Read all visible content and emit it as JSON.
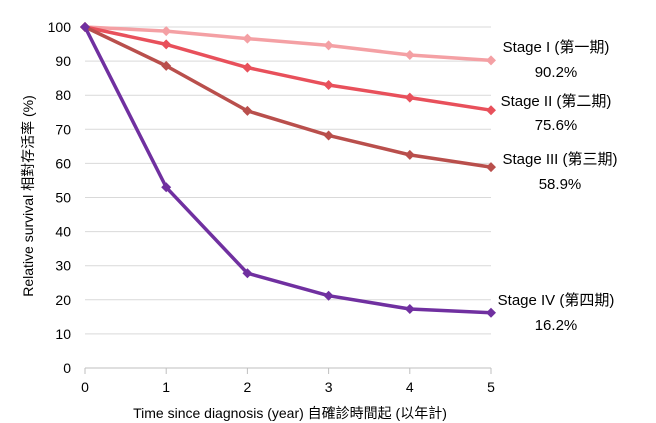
{
  "chart_data": {
    "type": "line",
    "title": "",
    "xlabel": "Time since diagnosis (year) 自確診時間起 (以年計)",
    "ylabel": "Relative survival  相對存活率 (%)",
    "x": [
      0,
      1,
      2,
      3,
      4,
      5
    ],
    "xlim": [
      0,
      5
    ],
    "ylim": [
      0,
      100
    ],
    "yticks": [
      0,
      10,
      20,
      30,
      40,
      50,
      60,
      70,
      80,
      90,
      100
    ],
    "grid": true,
    "legend": "direct labels at line ends",
    "series": [
      {
        "name": "Stage I (第一期)",
        "end_label": "90.2%",
        "color": "#f4a0a4",
        "values": [
          100,
          98.8,
          96.6,
          94.6,
          91.8,
          90.2
        ]
      },
      {
        "name": "Stage II (第二期)",
        "end_label": "75.6%",
        "color": "#e8505b",
        "values": [
          100,
          94.9,
          88.1,
          83.0,
          79.3,
          75.6
        ]
      },
      {
        "name": "Stage III (第三期)",
        "end_label": "58.9%",
        "color": "#b94f4c",
        "values": [
          100,
          88.6,
          75.4,
          68.2,
          62.5,
          58.9
        ]
      },
      {
        "name": "Stage IV (第四期)",
        "end_label": "16.2%",
        "color": "#7030a0",
        "values": [
          100,
          53.0,
          27.8,
          21.2,
          17.3,
          16.2
        ]
      }
    ]
  }
}
